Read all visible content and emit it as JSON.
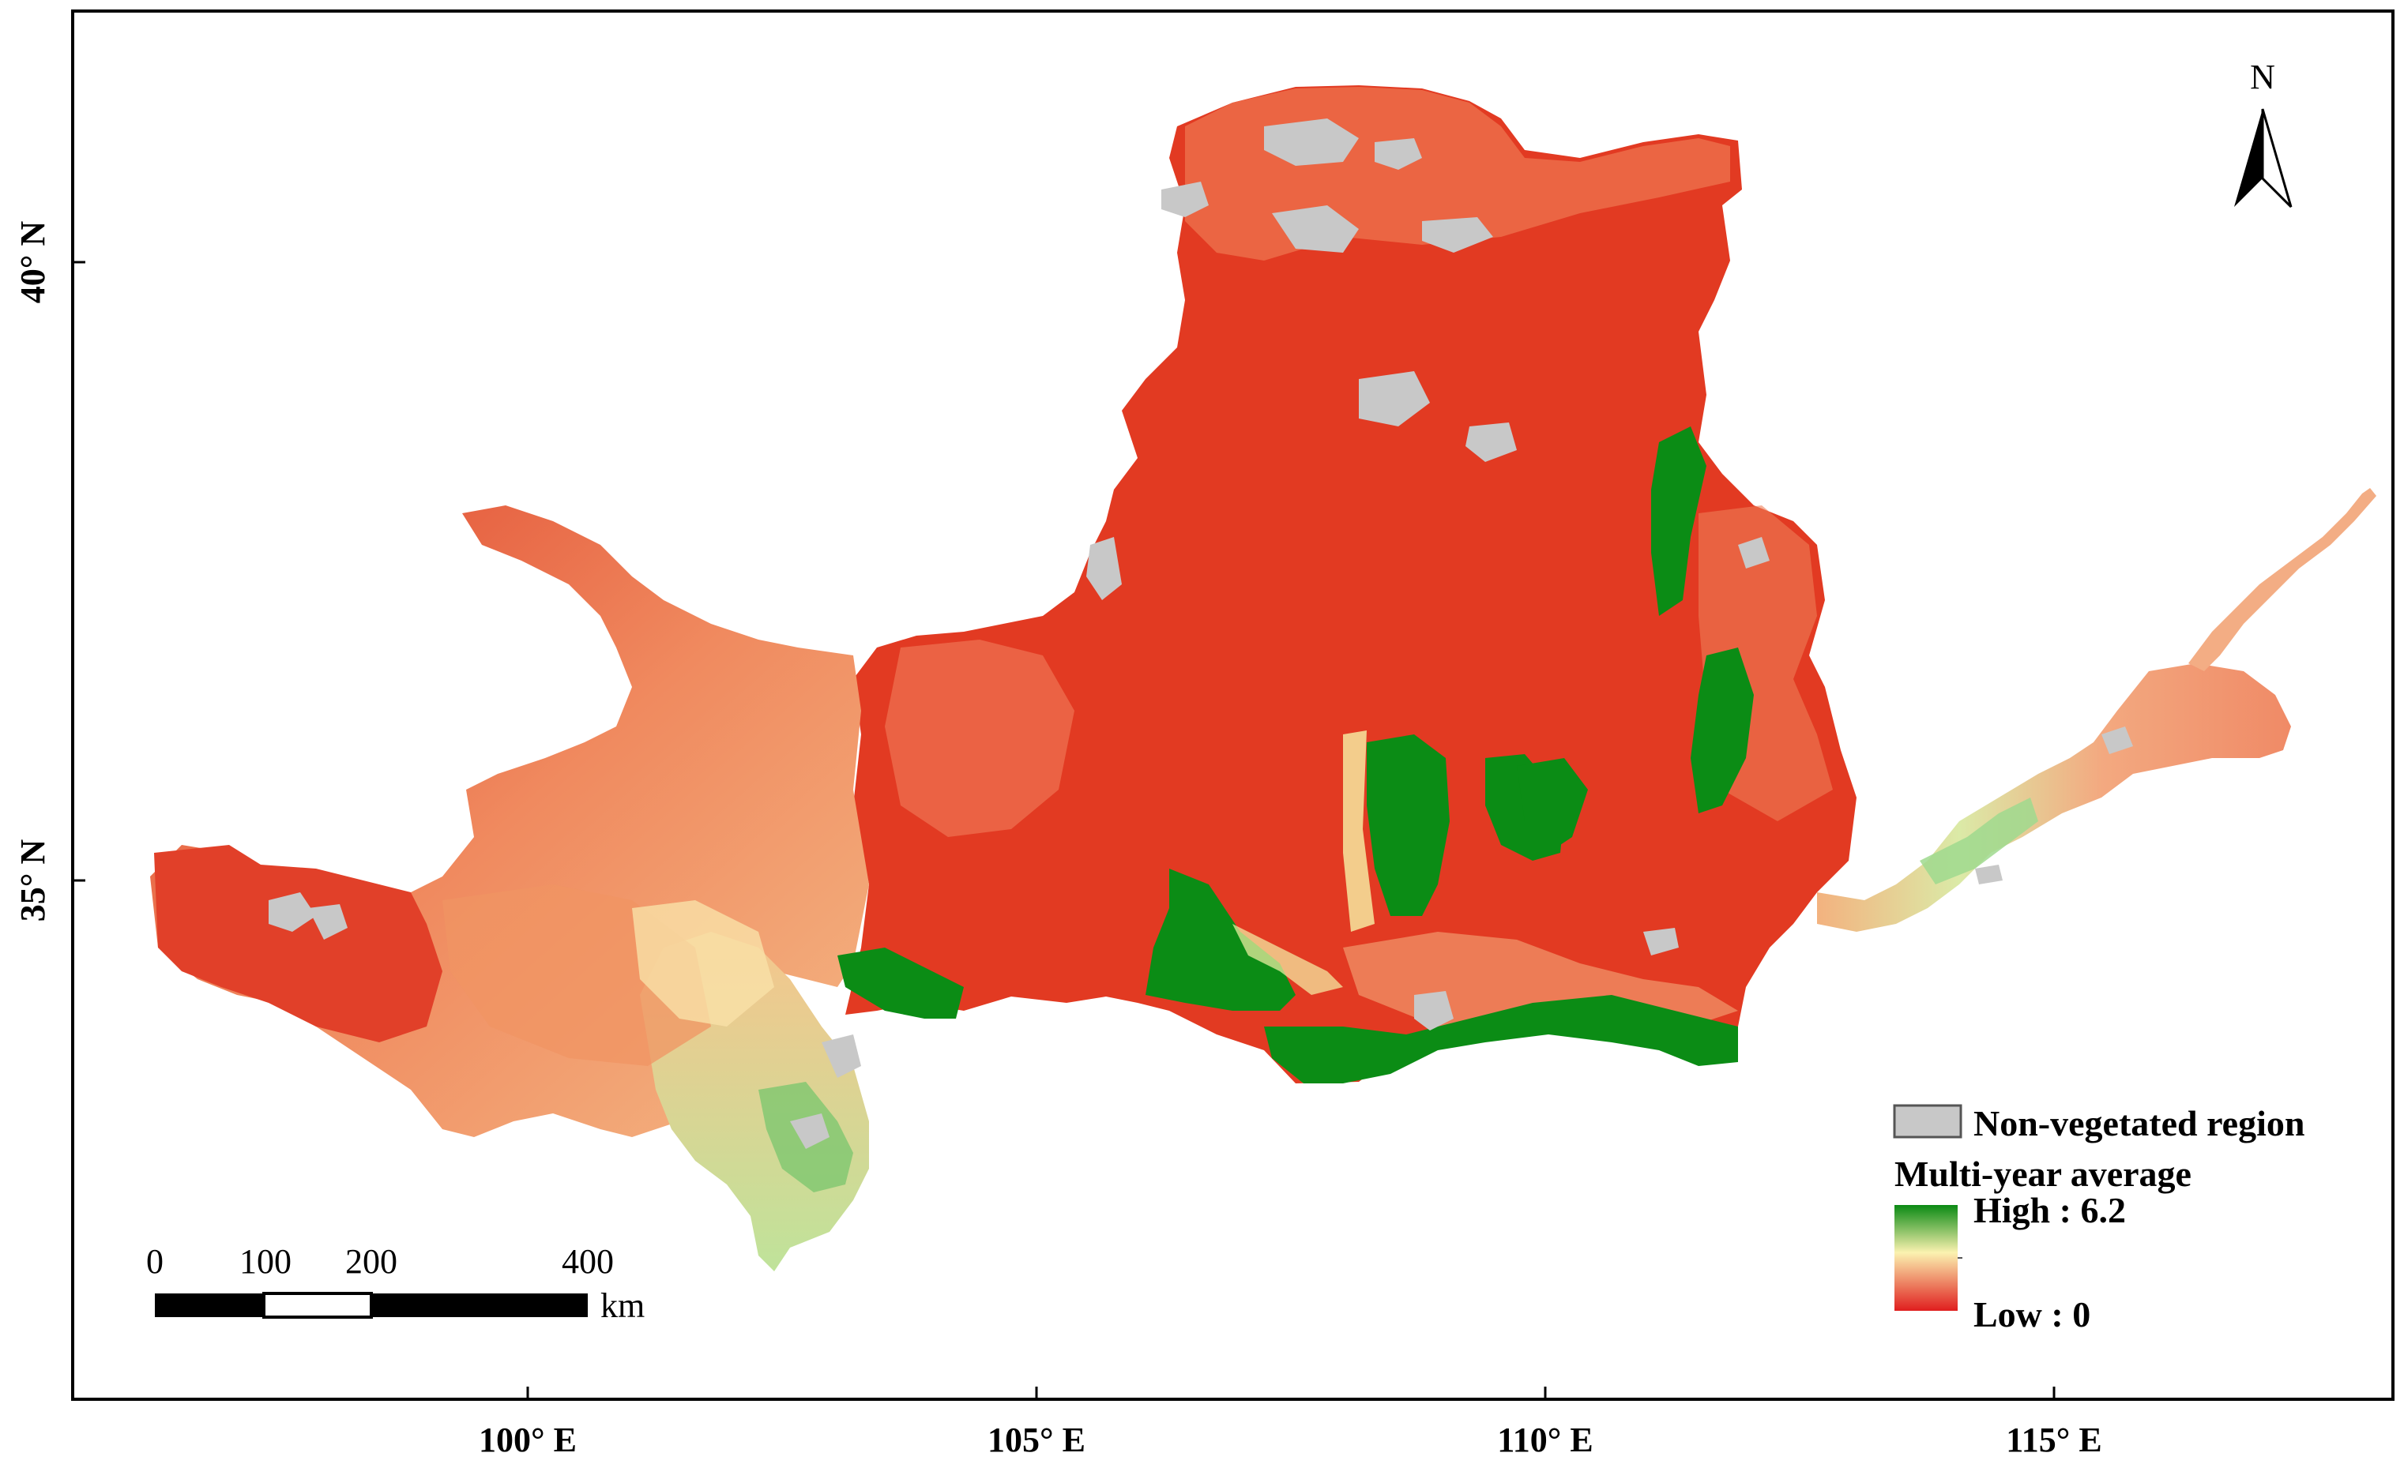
{
  "map": {
    "axes": {
      "x_ticks": [
        "100° E",
        "105° E",
        "110° E",
        "115° E"
      ],
      "y_ticks": [
        "40° N",
        "35° N"
      ]
    },
    "north_arrow": {
      "label": "N",
      "icon": "north-arrow-icon"
    },
    "scale_bar": {
      "labels": [
        "0",
        "100",
        "200",
        "400"
      ],
      "unit": "km"
    },
    "legend": {
      "non_vegetated_label": "Non-vegetated region",
      "title": "Multi-year average",
      "high_label": "High : 6.2",
      "low_label": "Low : 0",
      "colors": {
        "non_vegetated": "#c8c8c8",
        "high": "#0a8a14",
        "mid": "#fbf2b0",
        "low": "#e01e1e"
      },
      "range": [
        0,
        6.2
      ]
    }
  }
}
